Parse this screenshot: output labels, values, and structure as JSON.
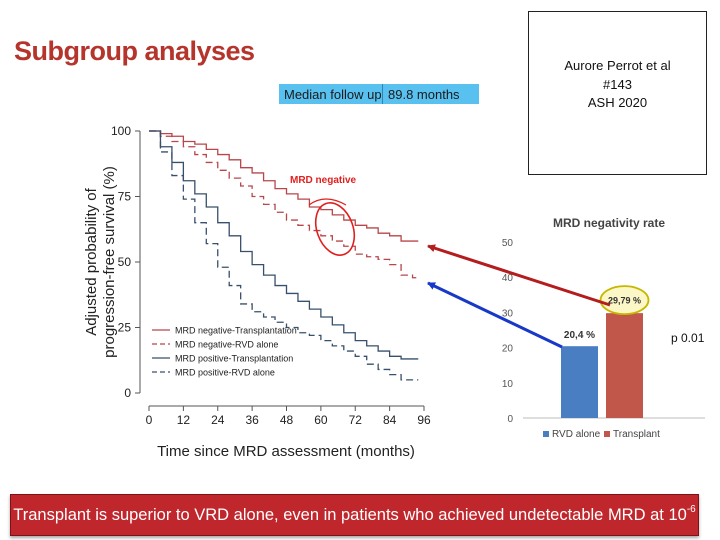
{
  "slide": {
    "title": "Subgroup analyses",
    "follow_up_label": "Median follow up",
    "follow_up_value": "89.8 months",
    "reference": {
      "author": "Aurore Perrot et al",
      "abstract": "#143",
      "meeting": "ASH 2020"
    },
    "annotation": "MRD negative",
    "p_value": "p 0.01",
    "conclusion_text": "Transplant is superior to VRD alone, even in patients who achieved undetectable MRD at 10",
    "conclusion_exponent": "-6"
  },
  "colors": {
    "title": "#b5342b",
    "mrd_negative": "#b8464a",
    "mrd_positive": "#37506b",
    "bar_rvd": "#4a7ec2",
    "bar_transplant": "#c0574a",
    "arrow_red": "#b41d1d",
    "arrow_blue": "#1838c8",
    "banner": "#c0272d"
  },
  "chart_data": [
    {
      "type": "line",
      "title": "",
      "xlabel": "Time since MRD assessment (months)",
      "ylabel": "Adjusted probability of progression-free survival (%)",
      "xlim": [
        0,
        96
      ],
      "ylim": [
        0,
        100
      ],
      "xticks": [
        0,
        12,
        24,
        36,
        48,
        60,
        72,
        84,
        96
      ],
      "yticks": [
        0,
        25,
        50,
        75,
        100
      ],
      "legend_position": "bottom-left",
      "series": [
        {
          "name": "MRD negative-Transplantation",
          "color_key": "mrd_negative",
          "dash": false,
          "x": [
            0,
            4,
            8,
            12,
            16,
            20,
            24,
            28,
            32,
            36,
            40,
            44,
            48,
            52,
            56,
            60,
            64,
            68,
            72,
            76,
            80,
            84,
            88,
            92
          ],
          "y": [
            100,
            99,
            98,
            96,
            95,
            93,
            91,
            89,
            86,
            84,
            81,
            78,
            76,
            74,
            71,
            70,
            68,
            66,
            64,
            63,
            61,
            60,
            58,
            58
          ]
        },
        {
          "name": "MRD negative-RVD alone",
          "color_key": "mrd_negative",
          "dash": true,
          "x": [
            0,
            4,
            8,
            12,
            16,
            20,
            24,
            28,
            32,
            36,
            40,
            44,
            48,
            52,
            56,
            60,
            64,
            68,
            72,
            76,
            80,
            84,
            88,
            92
          ],
          "y": [
            100,
            98,
            96,
            94,
            91,
            88,
            85,
            82,
            79,
            75,
            72,
            69,
            66,
            64,
            62,
            60,
            58,
            56,
            53,
            52,
            51,
            49,
            45,
            44
          ]
        },
        {
          "name": "MRD positive-Transplantation",
          "color_key": "mrd_positive",
          "dash": false,
          "x": [
            0,
            4,
            8,
            12,
            16,
            20,
            24,
            28,
            32,
            36,
            40,
            44,
            48,
            52,
            56,
            60,
            64,
            68,
            72,
            76,
            80,
            84,
            88,
            92
          ],
          "y": [
            100,
            94,
            88,
            81,
            76,
            71,
            65,
            60,
            54,
            49,
            45,
            41,
            38,
            35,
            32,
            29,
            26,
            23,
            20,
            18,
            16,
            14,
            13,
            13
          ]
        },
        {
          "name": "MRD positive-RVD alone",
          "color_key": "mrd_positive",
          "dash": true,
          "x": [
            0,
            4,
            8,
            12,
            16,
            20,
            24,
            28,
            32,
            36,
            40,
            44,
            48,
            52,
            56,
            60,
            64,
            68,
            72,
            76,
            80,
            84,
            88,
            92
          ],
          "y": [
            100,
            92,
            83,
            74,
            65,
            57,
            48,
            41,
            34,
            31,
            29,
            27,
            25,
            23,
            22,
            20,
            18,
            16,
            14,
            11,
            9,
            7,
            5,
            5
          ]
        }
      ]
    },
    {
      "type": "bar",
      "title": "MRD negativity rate",
      "categories": [
        "RVD alone",
        "Transplant"
      ],
      "values": [
        20.4,
        29.79
      ],
      "data_labels": [
        "20,4 %",
        "29,79 %"
      ],
      "color_keys": [
        "bar_rvd",
        "bar_transplant"
      ],
      "ylim": [
        0,
        50
      ],
      "yticks": [
        0,
        10,
        20,
        30,
        40,
        50
      ],
      "legend_position": "bottom",
      "highlighted_category": "Transplant"
    }
  ]
}
